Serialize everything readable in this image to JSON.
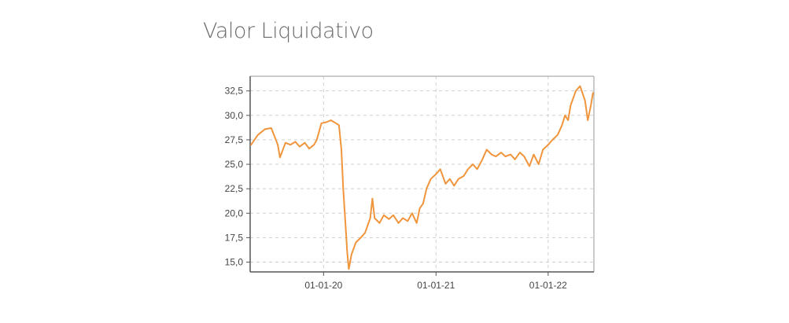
{
  "title": "Valor Liquidativo",
  "chart_data": {
    "type": "line",
    "title": "Valor Liquidativo",
    "xlabel": "",
    "ylabel": "",
    "x_ticks": [
      "01-01-20",
      "01-01-21",
      "01-01-22"
    ],
    "y_ticks": [
      "15,0",
      "17,5",
      "20,0",
      "22,5",
      "25,0",
      "27,5",
      "30,0",
      "32,5"
    ],
    "ylim": [
      14.0,
      34.0
    ],
    "xlim": [
      "2019-05-07",
      "2022-05-30"
    ],
    "grid": true,
    "color": "#f0953c",
    "series": [
      {
        "x": [
          "2019-05-10",
          "2019-06-01",
          "2019-06-25",
          "2019-07-15",
          "2019-08-05",
          "2019-08-12",
          "2019-08-30",
          "2019-09-15",
          "2019-10-01",
          "2019-10-15",
          "2019-11-01",
          "2019-11-15",
          "2019-12-01",
          "2019-12-10",
          "2019-12-25",
          "2020-01-10",
          "2020-01-25",
          "2020-02-10",
          "2020-02-20",
          "2020-02-28",
          "2020-03-05",
          "2020-03-12",
          "2020-03-18",
          "2020-03-23",
          "2020-04-01",
          "2020-04-15",
          "2020-05-01",
          "2020-05-15",
          "2020-06-01",
          "2020-06-08",
          "2020-06-15",
          "2020-07-01",
          "2020-07-15",
          "2020-08-01",
          "2020-08-15",
          "2020-09-01",
          "2020-09-15",
          "2020-10-01",
          "2020-10-15",
          "2020-10-30",
          "2020-11-09",
          "2020-11-20",
          "2020-12-01",
          "2020-12-15",
          "2021-01-01",
          "2021-01-15",
          "2021-02-01",
          "2021-02-15",
          "2021-03-01",
          "2021-03-15",
          "2021-04-01",
          "2021-04-15",
          "2021-05-01",
          "2021-05-15",
          "2021-06-01",
          "2021-06-15",
          "2021-07-01",
          "2021-07-15",
          "2021-08-01",
          "2021-08-15",
          "2021-09-01",
          "2021-09-15",
          "2021-10-01",
          "2021-10-15",
          "2021-11-01",
          "2021-11-15",
          "2021-12-01",
          "2021-12-15",
          "2022-01-01",
          "2022-01-15",
          "2022-02-01",
          "2022-02-15",
          "2022-02-25",
          "2022-03-07",
          "2022-03-15",
          "2022-04-01",
          "2022-04-15",
          "2022-05-01",
          "2022-05-10",
          "2022-05-20",
          "2022-05-27"
        ],
        "y": [
          27.0,
          28.0,
          28.6,
          28.7,
          27.0,
          25.7,
          27.2,
          27.0,
          27.3,
          26.8,
          27.2,
          26.6,
          27.0,
          27.5,
          29.2,
          29.3,
          29.5,
          29.2,
          29.0,
          26.5,
          22.5,
          19.0,
          16.0,
          14.3,
          15.8,
          17.0,
          17.5,
          18.0,
          19.5,
          21.5,
          19.5,
          19.0,
          19.8,
          19.4,
          19.8,
          19.0,
          19.5,
          19.2,
          20.0,
          19.0,
          20.5,
          21.0,
          22.5,
          23.5,
          24.0,
          24.5,
          23.0,
          23.5,
          22.8,
          23.5,
          23.8,
          24.5,
          25.0,
          24.5,
          25.5,
          26.5,
          26.0,
          25.8,
          26.2,
          25.8,
          26.0,
          25.5,
          26.2,
          25.8,
          24.8,
          26.0,
          25.0,
          26.5,
          27.0,
          27.5,
          28.0,
          29.0,
          30.0,
          29.5,
          31.0,
          32.5,
          33.0,
          31.5,
          29.5,
          31.0,
          32.3
        ]
      }
    ]
  }
}
